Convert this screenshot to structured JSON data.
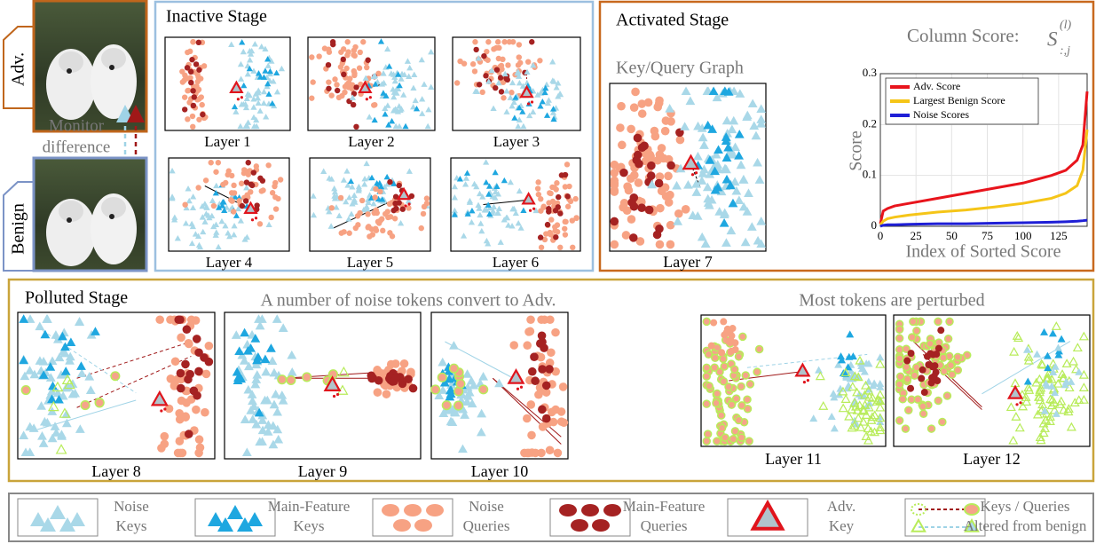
{
  "side": {
    "adv": "Adv.",
    "benign": "Benign",
    "monitor": [
      "Monitor",
      "difference"
    ]
  },
  "inactive": {
    "title": "Inactive Stage",
    "layers": [
      "Layer 1",
      "Layer 2",
      "Layer 3",
      "Layer 4",
      "Layer 5",
      "Layer 6"
    ]
  },
  "activated": {
    "title": "Activated Stage",
    "graph_title": "Key/Query Graph",
    "layer": "Layer 7"
  },
  "chart_data": {
    "type": "line",
    "title": "Column Score:",
    "title_symbol": {
      "base": "S",
      "superscript": "(l)",
      "subscript": ":,j"
    },
    "y_label": "Score",
    "x_label": "Index of Sorted Score",
    "x": [
      0,
      2,
      5,
      10,
      20,
      40,
      60,
      80,
      100,
      120,
      130,
      138,
      142,
      145
    ],
    "series": [
      {
        "name": "Adv. Score",
        "color": "#e8141c",
        "values": [
          0.005,
          0.03,
          0.035,
          0.04,
          0.045,
          0.055,
          0.065,
          0.075,
          0.085,
          0.1,
          0.11,
          0.13,
          0.16,
          0.265
        ]
      },
      {
        "name": "Largest Benign Score",
        "color": "#f5c518",
        "values": [
          0.003,
          0.01,
          0.015,
          0.018,
          0.022,
          0.028,
          0.032,
          0.038,
          0.045,
          0.055,
          0.065,
          0.08,
          0.11,
          0.19
        ]
      },
      {
        "name": "Noise Scores",
        "color": "#1f1fd6",
        "values": [
          0,
          0.002,
          0.003,
          0.003,
          0.004,
          0.005,
          0.005,
          0.006,
          0.007,
          0.008,
          0.009,
          0.01,
          0.011,
          0.012
        ]
      }
    ],
    "xlim": [
      0,
      145
    ],
    "ylim": [
      0,
      0.3
    ],
    "xticks": [
      0,
      25,
      50,
      75,
      100,
      125
    ],
    "yticks": [
      0,
      0.1,
      0.2,
      0.3
    ],
    "grid": true
  },
  "polluted": {
    "title": "Polluted Stage",
    "notes": [
      "A number of noise tokens convert to Adv.",
      "Most tokens are perturbed"
    ],
    "layers": [
      "Layer 8",
      "Layer 9",
      "Layer 10",
      "Layer 11",
      "Layer 12"
    ]
  },
  "legend": [
    {
      "label": [
        "Noise",
        "Keys"
      ]
    },
    {
      "label": [
        "Main-Feature",
        "Keys"
      ]
    },
    {
      "label": [
        "Noise",
        "Queries"
      ]
    },
    {
      "label": [
        "Main-Feature",
        "Queries"
      ]
    },
    {
      "label": [
        "Adv.",
        "Key"
      ]
    },
    {
      "label": [
        "Keys / Queries",
        "Altered from benign"
      ]
    }
  ]
}
